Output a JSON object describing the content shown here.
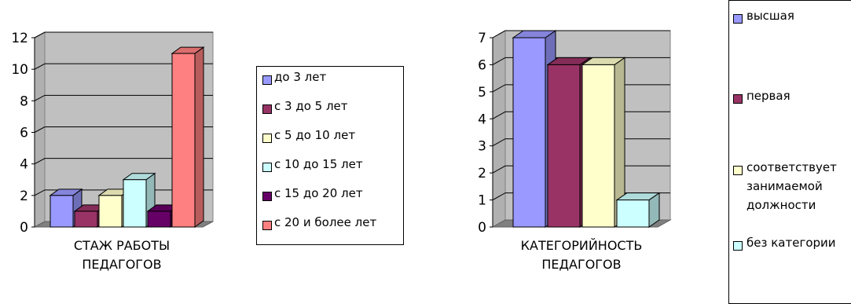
{
  "chart_data": [
    {
      "type": "bar",
      "style": "3d-clustered-column",
      "xlabel": "СТАЖ РАБОТЫ ПЕДАГОГОВ",
      "xlabel_lines": [
        "СТАЖ РАБОТЫ",
        "ПЕДАГОГОВ"
      ],
      "ylim": [
        0,
        12
      ],
      "yticks": [
        "0",
        "2",
        "4",
        "6",
        "8",
        "10",
        "12"
      ],
      "ytick_values": [
        0,
        2,
        4,
        6,
        8,
        10,
        12
      ],
      "grid": true,
      "legend": "right",
      "series": [
        {
          "name": "до 3 лет",
          "values": [
            2
          ],
          "color": "#9999ff"
        },
        {
          "name": "с 3 до 5 лет",
          "values": [
            1
          ],
          "color": "#993366"
        },
        {
          "name": "с 5 до 10 лет",
          "values": [
            2
          ],
          "color": "#ffffcc"
        },
        {
          "name": "с 10 до 15 лет",
          "values": [
            3
          ],
          "color": "#ccffff"
        },
        {
          "name": "с 15 до 20 лет",
          "values": [
            1
          ],
          "color": "#660066"
        },
        {
          "name": "с 20 и более лет",
          "values": [
            11
          ],
          "color": "#ff8080"
        }
      ]
    },
    {
      "type": "bar",
      "style": "3d-clustered-column",
      "xlabel": "КАТЕГОРИЙНОСТЬ ПЕДАГОГОВ",
      "xlabel_lines": [
        "КАТЕГОРИЙНОСТЬ",
        "ПЕДАГОГОВ"
      ],
      "ylim": [
        0,
        7
      ],
      "yticks": [
        "0",
        "1",
        "2",
        "3",
        "4",
        "5",
        "6",
        "7"
      ],
      "ytick_values": [
        0,
        1,
        2,
        3,
        4,
        5,
        6,
        7
      ],
      "grid": true,
      "legend": "right",
      "series": [
        {
          "name": "высшая",
          "values": [
            7
          ],
          "color": "#9999ff"
        },
        {
          "name": "первая",
          "values": [
            6
          ],
          "color": "#993366"
        },
        {
          "name": "соответствует занимаемой должности",
          "name_lines": [
            "соответствует",
            "занимаемой",
            "должности"
          ],
          "values": [
            6
          ],
          "color": "#ffffcc"
        },
        {
          "name": "без категории",
          "values": [
            1
          ],
          "color": "#ccffff"
        }
      ]
    }
  ],
  "colors": {
    "plot_wall": "#c0c0c0",
    "plot_floor": "#808080",
    "gridline": "#000000"
  }
}
